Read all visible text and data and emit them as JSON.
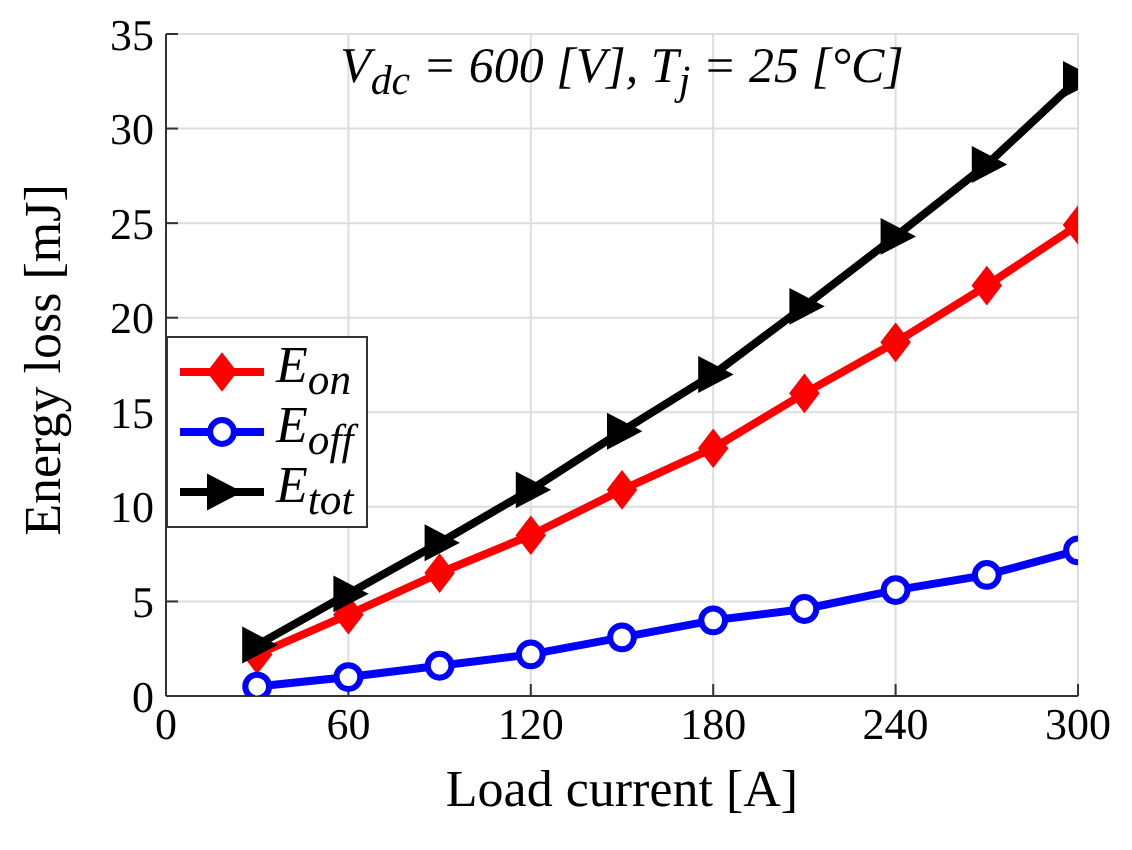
{
  "chart_data": {
    "type": "line",
    "title": "V$_{dc}$ = 600 [V], T$_{j}$ = 25 [°C]",
    "xlabel": "Load current [A]",
    "ylabel": "Energy loss [mJ]",
    "x": [
      30,
      60,
      90,
      120,
      150,
      180,
      210,
      240,
      270,
      300
    ],
    "series": [
      {
        "name": "E$_{on}$",
        "color": "#ff0000",
        "marker": "diamond",
        "values": [
          2.2,
          4.3,
          6.5,
          8.5,
          10.9,
          13.1,
          16.0,
          18.7,
          21.7,
          24.9
        ]
      },
      {
        "name": "E$_{off}$",
        "color": "#0000ff",
        "marker": "circle",
        "values": [
          0.5,
          1.0,
          1.6,
          2.2,
          3.1,
          4.0,
          4.6,
          5.6,
          6.4,
          7.7
        ]
      },
      {
        "name": "E$_{tot}$",
        "color": "#000000",
        "marker": "triangle",
        "values": [
          2.7,
          5.4,
          8.1,
          10.9,
          14.0,
          17.0,
          20.6,
          24.3,
          28.1,
          32.6
        ]
      }
    ],
    "xlim": [
      0,
      300
    ],
    "xticks": [
      0,
      60,
      120,
      180,
      240,
      300
    ],
    "ylim": [
      0,
      35
    ],
    "yticks": [
      0,
      5,
      10,
      15,
      20,
      25,
      30,
      35
    ],
    "grid": true,
    "legend": "left",
    "line_style": "solid"
  }
}
